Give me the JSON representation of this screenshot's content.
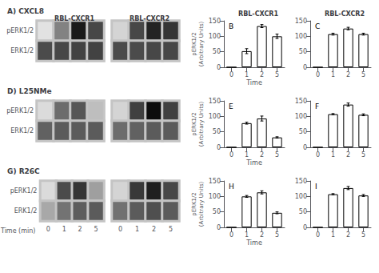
{
  "chart_data": [
    {
      "type": "heatmap",
      "title": "A) CXCL8",
      "subtitle": "RBL-CXCR1",
      "categories": [
        "0",
        "1",
        "2",
        "5"
      ],
      "y_categories": [
        "pERK1/2",
        "ERK1/2"
      ],
      "cells": [
        [
          0.02,
          0.45,
          0.92,
          0.72
        ],
        [
          0.7,
          0.72,
          0.74,
          0.74
        ]
      ],
      "tick_labels": "y"
    },
    {
      "type": "heatmap",
      "subtitle": "RBL-CXCR2",
      "categories": [
        "0",
        "1",
        "2",
        "5"
      ],
      "y_categories": [
        "pERK1/2",
        "ERK1/2"
      ],
      "cells": [
        [
          0.08,
          0.72,
          0.88,
          0.8
        ],
        [
          0.7,
          0.7,
          0.72,
          0.72
        ]
      ],
      "tick_labels": false
    },
    {
      "type": "heatmap",
      "title": "D) L25NMe",
      "categories": [
        "0",
        "1",
        "2",
        "5"
      ],
      "y_categories": [
        "pERK1/2",
        "ERK1/2"
      ],
      "cells": [
        [
          0.05,
          0.55,
          0.65,
          0.18
        ],
        [
          0.6,
          0.63,
          0.63,
          0.63
        ]
      ],
      "tick_labels": "y"
    },
    {
      "type": "heatmap",
      "categories": [
        "0",
        "1",
        "2",
        "5"
      ],
      "y_categories": [
        "pERK1/2",
        "ERK1/2"
      ],
      "cells": [
        [
          0.08,
          0.75,
          0.98,
          0.75
        ],
        [
          0.55,
          0.6,
          0.63,
          0.63
        ]
      ],
      "tick_labels": false
    },
    {
      "type": "heatmap",
      "title": "G) R26C",
      "xlabel": "Time (min)",
      "categories": [
        "0",
        "1",
        "2",
        "5"
      ],
      "y_categories": [
        "pERK1/2",
        "ERK1/2"
      ],
      "cells": [
        [
          0.05,
          0.7,
          0.8,
          0.32
        ],
        [
          0.28,
          0.52,
          0.62,
          0.63
        ]
      ]
    },
    {
      "type": "heatmap",
      "categories": [
        "0",
        "1",
        "2",
        "5"
      ],
      "y_categories": [
        "pERK1/2",
        "ERK1/2"
      ],
      "cells": [
        [
          0.08,
          0.78,
          0.9,
          0.72
        ],
        [
          0.53,
          0.63,
          0.68,
          0.63
        ]
      ],
      "tick_labels": "x"
    },
    {
      "type": "bar",
      "title": "RBL-CXCR1",
      "annotations": [
        "B"
      ],
      "categories": [
        "0",
        "1",
        "2",
        "5"
      ],
      "values": [
        0,
        52,
        133,
        100
      ],
      "errors": [
        0,
        8,
        5,
        7
      ],
      "color": "white",
      "xlabel": "Time",
      "ylabel": "pERK1/2\n(Arbitrary Units)",
      "ylim": [
        0,
        150
      ],
      "yticks": [
        0,
        50,
        100,
        150
      ],
      "grid": false
    },
    {
      "type": "bar",
      "title": "RBL-CXCR2",
      "annotations": [
        "C"
      ],
      "categories": [
        "0",
        "1",
        "2",
        "5"
      ],
      "values": [
        0,
        107,
        125,
        107
      ],
      "errors": [
        0,
        3,
        4,
        3
      ],
      "color": "white",
      "ylim": [
        0,
        150
      ],
      "yticks": [
        0,
        50,
        100,
        150
      ],
      "grid": false
    },
    {
      "type": "bar",
      "annotations": [
        "E"
      ],
      "categories": [
        "0",
        "1",
        "2",
        "5"
      ],
      "values": [
        0,
        78,
        93,
        32
      ],
      "errors": [
        0,
        3,
        8,
        2
      ],
      "color": "white",
      "xlabel": "Time",
      "ylabel": "pERK1/2\n(Arbitrary Units)",
      "ylim": [
        0,
        150
      ],
      "yticks": [
        0,
        50,
        100,
        150
      ],
      "grid": false
    },
    {
      "type": "bar",
      "annotations": [
        "F"
      ],
      "categories": [
        "0",
        "1",
        "2",
        "5"
      ],
      "values": [
        0,
        107,
        138,
        105
      ],
      "errors": [
        0,
        2,
        5,
        3
      ],
      "color": "white",
      "ylim": [
        0,
        150
      ],
      "yticks": [
        0,
        50,
        100,
        150
      ],
      "grid": false
    },
    {
      "type": "bar",
      "annotations": [
        "H"
      ],
      "categories": [
        "0",
        "1",
        "2",
        "5"
      ],
      "values": [
        0,
        100,
        113,
        47
      ],
      "errors": [
        0,
        3,
        5,
        3
      ],
      "color": "white",
      "xlabel": "Time",
      "ylabel": "pERK1/2\n(Arbitrary Units)",
      "ylim": [
        0,
        150
      ],
      "yticks": [
        0,
        50,
        100,
        150
      ],
      "grid": false
    },
    {
      "type": "bar",
      "annotations": [
        "I"
      ],
      "categories": [
        "0",
        "1",
        "2",
        "5"
      ],
      "values": [
        0,
        107,
        127,
        103
      ],
      "errors": [
        0,
        2,
        5,
        3
      ],
      "color": "white",
      "ylim": [
        0,
        150
      ],
      "yticks": [
        0,
        50,
        100,
        150
      ],
      "grid": false
    }
  ]
}
